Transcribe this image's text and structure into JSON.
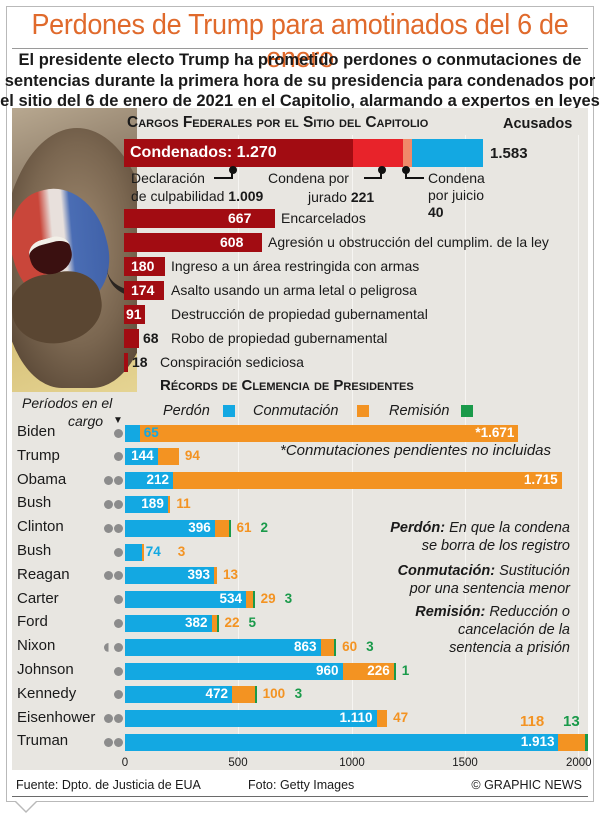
{
  "header": {
    "title": "Perdones de Trump para amotinados del 6 de enero",
    "subtitle_lines": [
      "El presidente electo Trump ha prometido perdones o conmutaciones de",
      "sentencias durante la primera hora de su presidencia para condenados por",
      "el sitio del 6 de enero de 2021 en el Capitolio, alarmando a expertos en leyes"
    ]
  },
  "colors": {
    "title": "#e06a2c",
    "dark_red": "#a20c12",
    "bright_red": "#e8232a",
    "salmon": "#f08a6a",
    "perdon_blue": "#13a8e2",
    "conmutacion_orange": "#f39322",
    "remision_green": "#1a9a4a",
    "panel_bg": "#e8e6e1"
  },
  "federal_charges": {
    "title": "Cargos Federales por el Sitio del Capitolio",
    "acusados_label": "Acusados",
    "acusados_total": "1.583",
    "condenados_label": "Condenados: 1.270",
    "breakdown": {
      "declaracion_label_1": "Declaración",
      "declaracion_label_2": "de culpabilidad",
      "declaracion_value": "1.009",
      "jurado_label_1": "Condena por",
      "jurado_label_2": "jurado",
      "jurado_value": "221",
      "juicio_label_1": "Condena",
      "juicio_label_2": "por juicio",
      "juicio_value": "40"
    },
    "rows": [
      {
        "value": "667",
        "label": "Encarcelados"
      },
      {
        "value": "608",
        "label": "Agresión u obstrucción del cumplim. de la ley"
      },
      {
        "value": "180",
        "label": "Ingreso a un área restringida con armas"
      },
      {
        "value": "174",
        "label": "Asalto usando un arma letal o peligrosa"
      },
      {
        "value": "91",
        "label": "Destrucción de propiedad gubernamental"
      },
      {
        "value": "68",
        "label": "Robo de propiedad gubernamental"
      },
      {
        "value": "18",
        "label": "Conspiración sediciosa"
      }
    ]
  },
  "clemency": {
    "title": "Récords de Clemencia de Presidentes",
    "terms_label_1": "Períodos en el",
    "terms_label_2": "cargo",
    "legend": {
      "perdon": "Perdón",
      "conmutacion": "Conmutación",
      "remision": "Remisión"
    },
    "note": "*Conmutaciones pendientes no incluidas",
    "definitions": {
      "perdon_term": "Perdón:",
      "perdon_text_1": "En que la condena",
      "perdon_text_2": "se borra de los registro",
      "conmutacion_term": "Conmutación:",
      "conmutacion_text_1": "Sustitución",
      "conmutacion_text_2": "por una sentencia menor",
      "remision_term": "Remisión:",
      "remision_text_1": "Reducción o",
      "remision_text_2": "cancelación de la",
      "remision_text_3": "sentencia a prisión"
    },
    "axis_ticks": [
      "0",
      "500",
      "1000",
      "1500",
      "2000"
    ],
    "presidents": [
      {
        "name": "Biden",
        "terms": "1",
        "perdon": "65",
        "conmutacion": "*1.671",
        "remision": ""
      },
      {
        "name": "Trump",
        "terms": "1",
        "perdon": "144",
        "conmutacion": "94",
        "remision": ""
      },
      {
        "name": "Obama",
        "terms": "2",
        "perdon": "212",
        "conmutacion": "1.715",
        "remision": ""
      },
      {
        "name": "Bush",
        "terms": "2",
        "perdon": "189",
        "conmutacion": "11",
        "remision": ""
      },
      {
        "name": "Clinton",
        "terms": "2",
        "perdon": "396",
        "conmutacion": "61",
        "remision": "2"
      },
      {
        "name": "Bush",
        "terms": "1",
        "perdon": "74",
        "conmutacion": "3",
        "remision": ""
      },
      {
        "name": "Reagan",
        "terms": "2",
        "perdon": "393",
        "conmutacion": "13",
        "remision": ""
      },
      {
        "name": "Carter",
        "terms": "1",
        "perdon": "534",
        "conmutacion": "29",
        "remision": "3"
      },
      {
        "name": "Ford",
        "terms": "0.5",
        "perdon": "382",
        "conmutacion": "22",
        "remision": "5"
      },
      {
        "name": "Nixon",
        "terms": "1.5",
        "perdon": "863",
        "conmutacion": "60",
        "remision": "3"
      },
      {
        "name": "Johnson",
        "terms": "1",
        "perdon": "960",
        "conmutacion": "226",
        "remision": "1"
      },
      {
        "name": "Kennedy",
        "terms": "1",
        "perdon": "472",
        "conmutacion": "100",
        "remision": "3"
      },
      {
        "name": "Eisenhower",
        "terms": "2",
        "perdon": "1.110",
        "conmutacion": "47",
        "remision": ""
      },
      {
        "name": "Truman",
        "terms": "2",
        "perdon": "1.913",
        "conmutacion": "118",
        "remision": "13"
      }
    ]
  },
  "footer": {
    "source": "Fuente: Dpto. de Justicia de EUA",
    "photo": "Foto: Getty Images",
    "credit": "© GRAPHIC NEWS"
  },
  "chart_data": [
    {
      "type": "bar",
      "title": "Cargos Federales por el Sitio del Capitolio",
      "orientation": "horizontal",
      "categories": [
        "Acusados",
        "Condenados",
        "Declaración de culpabilidad",
        "Condena por jurado",
        "Condena por juicio",
        "Encarcelados",
        "Agresión u obstrucción del cumplim. de la ley",
        "Ingreso a un área restringida con armas",
        "Asalto usando un arma letal o peligrosa",
        "Destrucción de propiedad gubernamental",
        "Robo de propiedad gubernamental",
        "Conspiración sediciosa"
      ],
      "values": [
        1583,
        1270,
        1009,
        221,
        40,
        667,
        608,
        180,
        174,
        91,
        68,
        18
      ]
    },
    {
      "type": "bar",
      "title": "Récords de Clemencia de Presidentes",
      "orientation": "horizontal",
      "stacked": true,
      "categories": [
        "Biden",
        "Trump",
        "Obama",
        "Bush",
        "Clinton",
        "Bush",
        "Reagan",
        "Carter",
        "Ford",
        "Nixon",
        "Johnson",
        "Kennedy",
        "Eisenhower",
        "Truman"
      ],
      "series": [
        {
          "name": "Perdón",
          "color": "#13a8e2",
          "values": [
            65,
            144,
            212,
            189,
            396,
            74,
            393,
            534,
            382,
            863,
            960,
            472,
            1110,
            1913
          ]
        },
        {
          "name": "Conmutación",
          "color": "#f39322",
          "values": [
            1671,
            94,
            1715,
            11,
            61,
            3,
            13,
            29,
            22,
            60,
            226,
            100,
            47,
            118
          ]
        },
        {
          "name": "Remisión",
          "color": "#1a9a4a",
          "values": [
            0,
            0,
            0,
            0,
            2,
            0,
            0,
            3,
            5,
            3,
            1,
            3,
            0,
            13
          ]
        }
      ],
      "terms_in_office": [
        1,
        1,
        2,
        2,
        2,
        1,
        2,
        1,
        0.5,
        1.5,
        1,
        1,
        2,
        2
      ],
      "xlim": [
        0,
        2050
      ],
      "xticks": [
        0,
        500,
        1000,
        1500,
        2000
      ],
      "grid": true,
      "legend_position": "top",
      "annotation": "*Conmutaciones pendientes no incluidas"
    }
  ]
}
